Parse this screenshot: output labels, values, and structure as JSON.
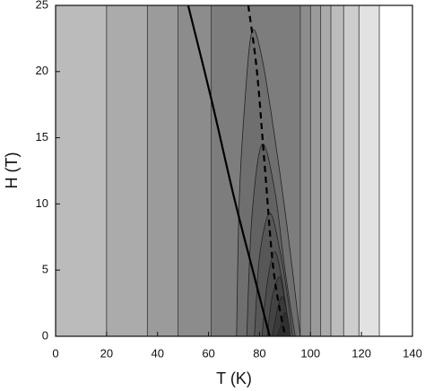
{
  "chart_data": {
    "type": "contour",
    "x_label": "T (K)",
    "y_label": "H (T)",
    "xlim": [
      0,
      140
    ],
    "ylim": [
      0,
      25
    ],
    "xticks": [
      0,
      20,
      40,
      60,
      80,
      100,
      120,
      140
    ],
    "yticks": [
      0,
      5,
      10,
      15,
      20,
      25
    ],
    "band_edges": [
      0,
      20,
      36,
      48,
      61,
      96,
      100,
      104,
      108,
      113,
      119,
      127,
      140
    ],
    "band_colors": [
      "#bbbbbb",
      "#ababab",
      "#9b9b9b",
      "#8c8c8c",
      "#7d7d7d",
      "#8c8c8c",
      "#9b9b9b",
      "#ababab",
      "#bcbcbc",
      "#cdcdcd",
      "#e2e2e2",
      "#ffffff"
    ],
    "contours": [
      {
        "color": "#6f6f6f",
        "x": [
          71,
          72,
          74,
          77,
          81,
          86,
          91,
          96
        ],
        "values": [
          0,
          10,
          17,
          23,
          21,
          15,
          8,
          0
        ]
      },
      {
        "color": "#626262",
        "x": [
          75,
          77,
          81,
          86,
          90,
          94
        ],
        "values": [
          0,
          9,
          14.5,
          11,
          5,
          0
        ]
      },
      {
        "color": "#575757",
        "x": [
          78,
          80,
          84,
          88,
          91,
          93
        ],
        "values": [
          0,
          6,
          9.3,
          6.5,
          3,
          0
        ]
      },
      {
        "color": "#4d4d4d",
        "x": [
          81,
          83,
          86,
          89,
          92
        ],
        "values": [
          0,
          4,
          6.4,
          4,
          0
        ]
      },
      {
        "color": "#434343",
        "x": [
          83,
          85,
          88,
          90,
          92
        ],
        "values": [
          0,
          3,
          4.5,
          2.5,
          0
        ]
      },
      {
        "color": "#3a3a3a",
        "x": [
          85,
          87,
          89,
          91,
          92
        ],
        "values": [
          0,
          2,
          3,
          1.5,
          0
        ]
      },
      {
        "color": "#303030",
        "x": [
          87,
          89,
          90,
          91.5,
          92
        ],
        "values": [
          0,
          1.2,
          1.8,
          1,
          0
        ]
      }
    ],
    "series": [
      {
        "dashed": false,
        "x": [
          52,
          61,
          70,
          78,
          84
        ],
        "values": [
          25,
          18,
          10.5,
          4.5,
          0
        ]
      },
      {
        "dashed": true,
        "x": [
          75.6,
          79,
          82,
          85.5,
          90
        ],
        "values": [
          25,
          20,
          13,
          5,
          0
        ]
      }
    ]
  }
}
